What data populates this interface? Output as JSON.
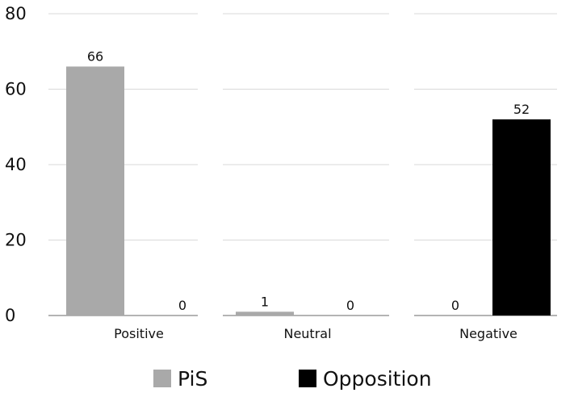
{
  "chart_data": {
    "type": "bar",
    "categories": [
      "Positive",
      "Neutral",
      "Negative"
    ],
    "series": [
      {
        "name": "PiS",
        "values": [
          66,
          1,
          0
        ],
        "color": "#a9a9a9"
      },
      {
        "name": "Opposition",
        "values": [
          0,
          0,
          52
        ],
        "color": "#000000"
      }
    ],
    "ylim": [
      0,
      80
    ],
    "yticks": [
      0,
      20,
      40,
      60,
      80
    ],
    "grid": true,
    "legend_position": "bottom",
    "data_labels": true
  }
}
